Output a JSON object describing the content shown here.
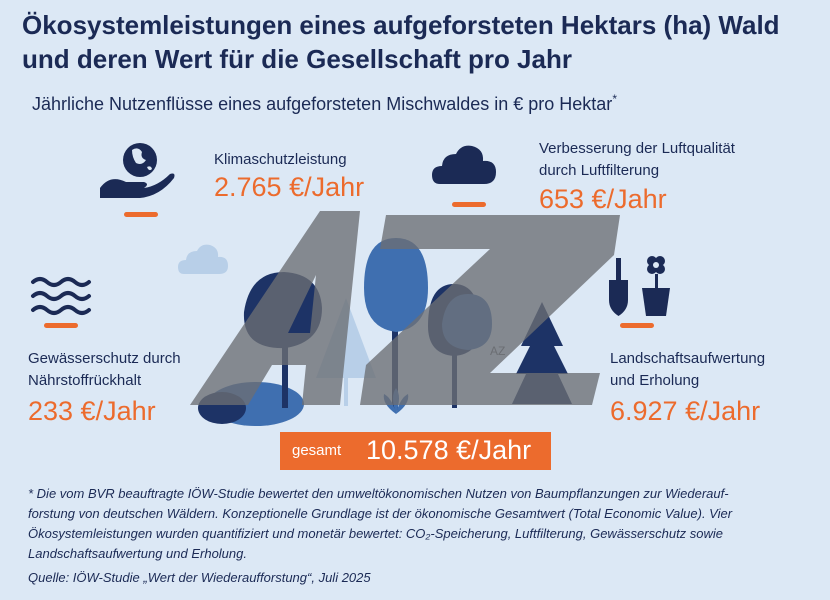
{
  "title_line1": "Ökosystemleistungen eines aufgeforsteten Hektars (ha) Wald",
  "title_line2": "und deren Wert für die Gesellschaft pro Jahr",
  "subtitle": "Jährliche Nutzenflüsse eines aufgeforsteten Mischwaldes in € pro Hektar",
  "subtitle_mark": "*",
  "items": [
    {
      "label_line1": "Klimaschutzleistung",
      "label_line2": "",
      "value": "2.765 €/Jahr",
      "icon": "hand-globe-icon"
    },
    {
      "label_line1": "Verbesserung der Luftqualität",
      "label_line2": "durch Luftfilterung",
      "value": "653 €/Jahr",
      "icon": "cloud-icon"
    },
    {
      "label_line1": "Gewässerschutz durch",
      "label_line2": "Nährstoffrückhalt",
      "value": "233 €/Jahr",
      "icon": "waves-icon"
    },
    {
      "label_line1": "Landschaftsaufwertung",
      "label_line2": "und Erholung",
      "value": "6.927 €/Jahr",
      "icon": "shovel-flowerpot-icon"
    }
  ],
  "total_label": "gesamt",
  "total_value": "10.578 €/Jahr",
  "footnote": [
    "* Die vom BVR beauftragte IÖW-Studie bewertet den umweltökonomischen Nutzen von Baumpflanzungen zur Wiederauf-",
    "forstung von deutschen Wäldern. Konzeptionelle Grundlage ist der ökonomische Gesamtwert (Total Economic Value). Vier",
    "Ökosystemleistungen wurden quantifiziert und monetär bewertet: CO₂-Speicherung, Luftfilterung, Gewässerschutz sowie",
    "Landschaftsaufwertung und Erholung."
  ],
  "source": "Quelle: IÖW-Studie „Wert der Wiederaufforstung“, Juli 2025",
  "watermark_text": "AZ",
  "colors": {
    "background": "#dce8f5",
    "navy": "#1b2a55",
    "accent_orange": "#ec6b2d",
    "tree_blue": "#3f6fb0",
    "tree_dark": "#1d3366",
    "cloud_light": "#b8cfe8"
  }
}
